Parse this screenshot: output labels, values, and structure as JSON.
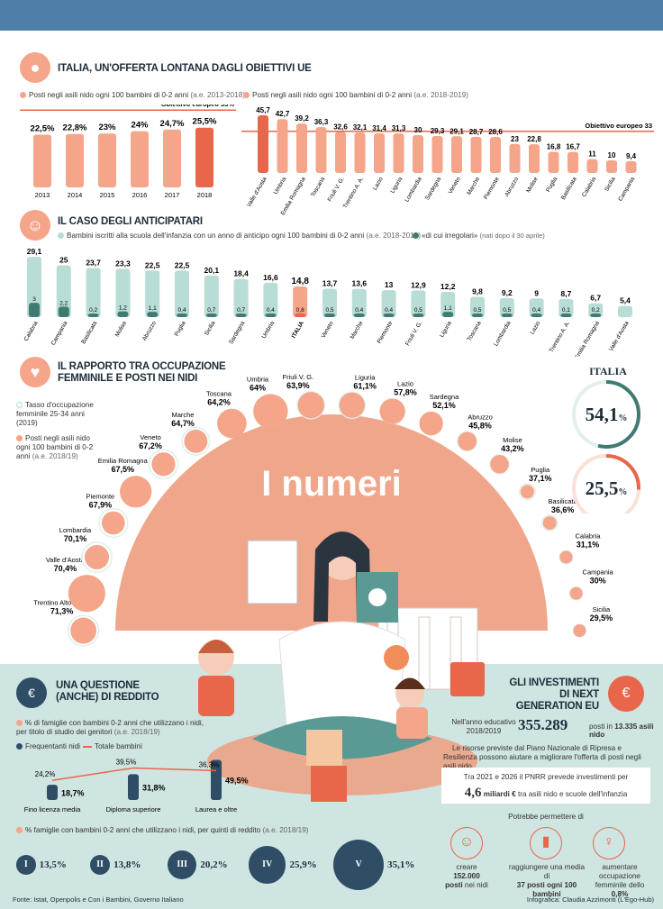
{
  "section1": {
    "title": "ITALIA, UN'OFFERTA LONTANA DAGLI OBIETTIVI UE",
    "left_note": "Posti negli asili nido ogni 100 bambini di 0-2 anni",
    "left_note_period": "(a.e. 2013-2018)",
    "right_note": "Posti negli asili nido ogni 100 bambini di 0-2 anni",
    "right_note_period": "(a.e. 2018-2019)",
    "target_label": "Obiettivo europeo",
    "target_value": "33",
    "target_value_pct": "%"
  },
  "section2": {
    "title": "IL CASO DEGLI ANTICIPATARI",
    "note": "Bambini iscritti alla scuola dell'infanzia con un anno di anticipo ogni 100 bambini di 0-2 anni",
    "note_period": "(a.e. 2018-2019)",
    "note2": "«di cui irregolari»",
    "note2_sub": "(nati dopo il 30 aprile)"
  },
  "section3": {
    "title_line1": "IL RAPPORTO TRA OCCUPAZIONE",
    "title_line2": "FEMMINILE E POSTI NEI NIDI",
    "legend1": "Tasso d'occupazione femminile 25-34 anni (2019)",
    "legend2": "Posti negli asili nido ogni 100 bambini di 0-2 anni",
    "legend2_period": "(a.e. 2018/19)",
    "italia_label": "ITALIA",
    "italia_occ": "54,1",
    "italia_posti": "25,5",
    "pct": "%",
    "big_title": "I numeri",
    "regions": [
      {
        "name": "Trentino Alto Adige",
        "value": "71,3"
      },
      {
        "name": "Valle d'Aosta",
        "value": "70,4"
      },
      {
        "name": "Lombardia",
        "value": "70,1"
      },
      {
        "name": "Piemonte",
        "value": "67,9"
      },
      {
        "name": "Emilia Romagna",
        "value": "67,5"
      },
      {
        "name": "Veneto",
        "value": "67,2"
      },
      {
        "name": "Marche",
        "value": "64,7"
      },
      {
        "name": "Toscana",
        "value": "64,2"
      },
      {
        "name": "Umbria",
        "value": "64"
      },
      {
        "name": "Friuli V. G.",
        "value": "63,9"
      },
      {
        "name": "Liguria",
        "value": "61,1"
      },
      {
        "name": "Lazio",
        "value": "57,8"
      },
      {
        "name": "Sardegna",
        "value": "52,1"
      },
      {
        "name": "Abruzzo",
        "value": "45,8"
      },
      {
        "name": "Molise",
        "value": "43,2"
      },
      {
        "name": "Puglia",
        "value": "37,1"
      },
      {
        "name": "Basilicata",
        "value": "36,6"
      },
      {
        "name": "Calabria",
        "value": "31,1"
      },
      {
        "name": "Campania",
        "value": "30"
      },
      {
        "name": "Sicilia",
        "value": "29,5"
      }
    ]
  },
  "section4": {
    "title_line1": "UNA QUESTIONE",
    "title_line2": "(ANCHE) DI REDDITO",
    "note1": "% di famiglie con bambini 0-2 anni che utilizzano i nidi, per titolo di studio dei genitori",
    "note1_period": "(a.e. 2018/19)",
    "legend_bar": "Frequentanti nidi",
    "legend_line": "Totale bambini",
    "note2": "% famiglie con bambini 0-2 anni che utilizzano i nidi, per quinti di reddito",
    "note2_period": "(a.e. 2018/19)"
  },
  "section5": {
    "title_line1": "GLI INVESTIMENTI",
    "title_line2": "DI NEXT GENERATION EU",
    "year_label": "Nell'anno educativo 2018/2019",
    "posti_value": "355.289",
    "posti_text": "posti in",
    "nidi_value": "13.335 asili nido",
    "risorse": "Le risorse previste dal Piano Nazionale di Ripresa e Resilienza possono aiutare a migliorare l'offerta di posti negli asili nido",
    "pnrr_line1": "Tra 2021 e 2026 il PNRR prevede investimenti per",
    "pnrr_amount": "4,6",
    "pnrr_unit": "miliardi €",
    "pnrr_tail": "tra asili nido e scuole dell'infanzia",
    "potrebbe": "Potrebbe permettere di",
    "effect1_a": "creare",
    "effect1_b": "152.000",
    "effect1_c": "posti nei nidi",
    "effect2_a": "raggiungere una media di",
    "effect2_b": "37 posti ogni 100 bambini",
    "effect3_a": "aumentare occupazione femminile dello",
    "effect3_b": "0,8%"
  },
  "footer": {
    "source": "Fonte: Istat, Openpolis e Con i Bambini, Governo Italiano",
    "credit": "Infografica: Claudia Azzimonti (L'Ego-Hub)"
  },
  "colors": {
    "salmon": "#f4a58a",
    "salmon_dark": "#e8664a",
    "teal_light": "#b8dcd6",
    "teal_dark": "#3f7b73",
    "navy": "#2f4e66",
    "header": "#4d7fa8",
    "band": "#cfe5e2"
  },
  "chart_data": [
    {
      "type": "bar",
      "categories": [
        "2013",
        "2014",
        "2015",
        "2016",
        "2017",
        "2018"
      ],
      "values": [
        22.5,
        22.8,
        23,
        24,
        24.7,
        25.5
      ],
      "labels": [
        "22,5",
        "22,8",
        "23",
        "24",
        "24,7",
        "25,5"
      ],
      "target": 33
    },
    {
      "type": "bar",
      "categories": [
        "Valle d'Aosta",
        "Umbria",
        "Emilia Romagna",
        "Toscana",
        "Friuli V. G.",
        "Trentino A. A.",
        "Lazio",
        "Liguria",
        "Lombardia",
        "Sardegna",
        "Veneto",
        "Marche",
        "Piemonte",
        "Abruzzo",
        "Molise",
        "Puglia",
        "Basilicata",
        "Calabria",
        "Sicilia",
        "Campania"
      ],
      "values": [
        45.7,
        42.7,
        39.2,
        36.3,
        32.6,
        32.1,
        31.4,
        31.3,
        30,
        29.3,
        29.1,
        28.7,
        28.6,
        23,
        22.8,
        16.8,
        16.7,
        11,
        10,
        9.4
      ],
      "labels": [
        "45,7",
        "42,7",
        "39,2",
        "36,3",
        "32,6",
        "32,1",
        "31,4",
        "31,3",
        "30",
        "29,3",
        "29,1",
        "28,7",
        "28,6",
        "23",
        "22,8",
        "16,8",
        "16,7",
        "11",
        "10",
        "9,4"
      ],
      "target": 33
    },
    {
      "type": "bar",
      "categories": [
        "Calabria",
        "Campania",
        "Basilicata",
        "Molise",
        "Abruzzo",
        "Puglia",
        "Sicilia",
        "Sardegna",
        "Umbria",
        "ITALIA",
        "Veneto",
        "Marche",
        "Piemonte",
        "Friuli V. G.",
        "Liguria",
        "Toscana",
        "Lombardia",
        "Lazio",
        "Trentino A. A.",
        "Emilia Romagna",
        "Valle d'Aosta"
      ],
      "series": [
        {
          "name": "Bambini iscritti alla scuola dell'infanzia con un anno di anticipo",
          "values": [
            29.1,
            25,
            23.7,
            23.3,
            22.5,
            22.5,
            20.1,
            18.4,
            16.6,
            14.8,
            13.7,
            13.6,
            13,
            12.9,
            12.2,
            9.8,
            9.2,
            9,
            8.7,
            6.7,
            5.4
          ],
          "labels": [
            "29,1",
            "25",
            "23,7",
            "23,3",
            "22,5",
            "22,5",
            "20,1",
            "18,4",
            "16,6",
            "14,8",
            "13,7",
            "13,6",
            "13",
            "12,9",
            "12,2",
            "9,8",
            "9,2",
            "9",
            "8,7",
            "6,7",
            "5,4"
          ]
        },
        {
          "name": "«di cui irregolari»",
          "values": [
            3,
            2.2,
            0.2,
            1.2,
            1.1,
            0.4,
            0.7,
            0.7,
            0.4,
            0.8,
            0.5,
            0.4,
            0.4,
            0.5,
            1.1,
            0.5,
            0.5,
            0.4,
            0.1,
            0.2,
            null
          ],
          "labels": [
            "3",
            "2,2",
            "0,2",
            "1,2",
            "1,1",
            "0,4",
            "0,7",
            "0,7",
            "0,4",
            "0,8",
            "0,5",
            "0,4",
            "0,4",
            "0,5",
            "1,1",
            "0,5",
            "0,5",
            "0,4",
            "0,1",
            "0,2",
            ""
          ]
        }
      ]
    },
    {
      "type": "bar",
      "categories": [
        "Fino licenza media",
        "Diploma superiore",
        "Laurea e oltre"
      ],
      "series": [
        {
          "name": "Frequentanti nidi",
          "values": [
            18.7,
            31.8,
            49.5
          ],
          "labels": [
            "18,7",
            "31,8",
            "49,5"
          ]
        },
        {
          "name": "Totale bambini",
          "values": [
            24.2,
            39.5,
            36.3
          ],
          "labels": [
            "24,2",
            "39,5",
            "36,3"
          ]
        }
      ]
    },
    {
      "type": "bar",
      "categories": [
        "I",
        "II",
        "III",
        "IV",
        "V"
      ],
      "values": [
        13.5,
        13.8,
        20.2,
        25.9,
        35.1
      ],
      "labels": [
        "13,5",
        "13,8",
        "20,2",
        "25,9",
        "35,1"
      ]
    }
  ]
}
